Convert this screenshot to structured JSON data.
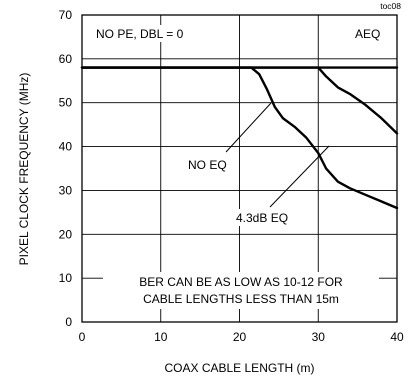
{
  "chart_data": {
    "type": "line",
    "figure_id": "toc08",
    "xlabel": "COAX CABLE LENGTH (m)",
    "ylabel": "PIXEL CLOCK FREQUENCY (MHz)",
    "xlim": [
      0,
      40
    ],
    "ylim": [
      0,
      70
    ],
    "xticks": [
      "0",
      "10",
      "20",
      "30",
      "40"
    ],
    "yticks": [
      "0",
      "10",
      "20",
      "30",
      "40",
      "50",
      "60",
      "70"
    ],
    "grid": true,
    "condition_label": "NO PE, DBL = 0",
    "note_lines": [
      "BER CAN BE AS LOW AS 10-12 FOR",
      "CABLE LENGTHS LESS THAN 15m"
    ],
    "series": [
      {
        "name": "AEQ",
        "points": [
          [
            0,
            58
          ],
          [
            40,
            58
          ]
        ]
      },
      {
        "name": "NO EQ",
        "points": [
          [
            0,
            58
          ],
          [
            21.5,
            58
          ],
          [
            22.5,
            56.5
          ],
          [
            23.5,
            53
          ],
          [
            24.5,
            49
          ],
          [
            25.5,
            46.5
          ],
          [
            27,
            44.5
          ],
          [
            28.5,
            42
          ],
          [
            30,
            38.5
          ],
          [
            31,
            35
          ],
          [
            32.5,
            32
          ],
          [
            34,
            30.5
          ],
          [
            36,
            29
          ],
          [
            38,
            27.5
          ],
          [
            40,
            26
          ]
        ]
      },
      {
        "name": "4.3dB EQ",
        "points": [
          [
            0,
            58
          ],
          [
            30,
            58
          ],
          [
            31,
            56
          ],
          [
            32.5,
            53.5
          ],
          [
            34,
            52
          ],
          [
            36,
            49.5
          ],
          [
            38,
            46.5
          ],
          [
            40,
            43
          ]
        ]
      }
    ]
  }
}
